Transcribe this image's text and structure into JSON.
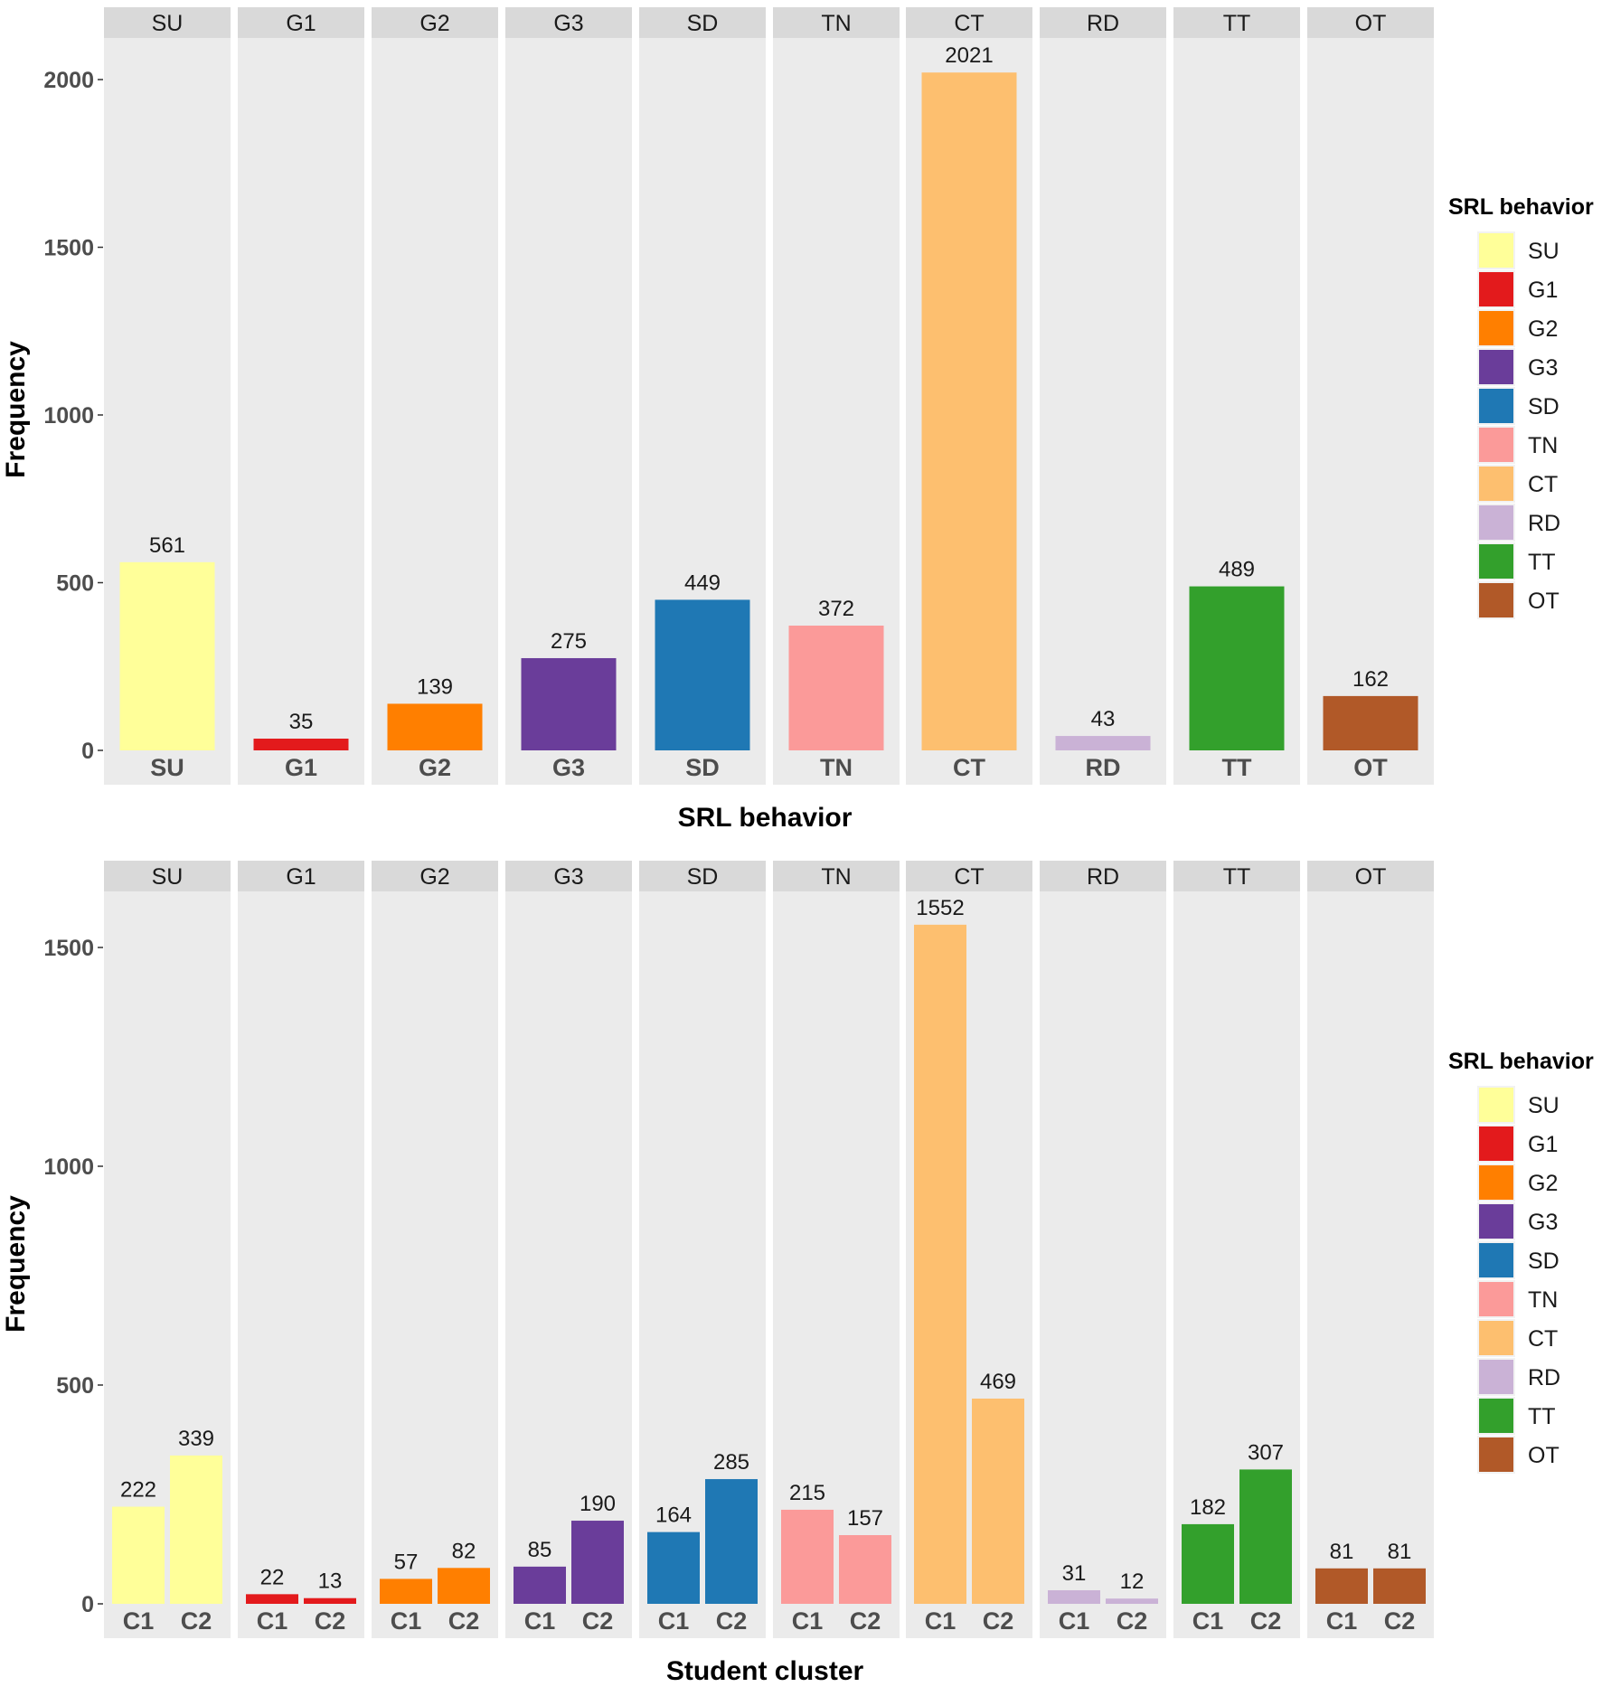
{
  "behaviors": [
    "SU",
    "G1",
    "G2",
    "G3",
    "SD",
    "TN",
    "CT",
    "RD",
    "TT",
    "OT"
  ],
  "colors": {
    "SU": "#FFFF99",
    "G1": "#E31A1C",
    "G2": "#FF7F00",
    "G3": "#6A3D9A",
    "SD": "#1F78B4",
    "TN": "#FB9A99",
    "CT": "#FDBF6F",
    "RD": "#CAB2D6",
    "TT": "#33A02C",
    "OT": "#B15928"
  },
  "chart_data": [
    {
      "type": "bar",
      "facets": [
        "SU",
        "G1",
        "G2",
        "G3",
        "SD",
        "TN",
        "CT",
        "RD",
        "TT",
        "OT"
      ],
      "categories": [
        "SU",
        "G1",
        "G2",
        "G3",
        "SD",
        "TN",
        "CT",
        "RD",
        "TT",
        "OT"
      ],
      "values": [
        561,
        35,
        139,
        275,
        449,
        372,
        2021,
        43,
        489,
        162
      ],
      "xlabel": "SRL behavior",
      "ylabel": "Frequency",
      "ylim": [
        0,
        2021
      ],
      "yticks": [
        0,
        500,
        1000,
        1500,
        2000
      ],
      "legend": {
        "title": "SRL behavior",
        "entries": [
          "SU",
          "G1",
          "G2",
          "G3",
          "SD",
          "TN",
          "CT",
          "RD",
          "TT",
          "OT"
        ]
      }
    },
    {
      "type": "bar",
      "facets": [
        "SU",
        "G1",
        "G2",
        "G3",
        "SD",
        "TN",
        "CT",
        "RD",
        "TT",
        "OT"
      ],
      "categories": [
        "C1",
        "C2"
      ],
      "series": [
        {
          "name": "SU",
          "values": [
            222,
            339
          ]
        },
        {
          "name": "G1",
          "values": [
            22,
            13
          ]
        },
        {
          "name": "G2",
          "values": [
            57,
            82
          ]
        },
        {
          "name": "G3",
          "values": [
            85,
            190
          ]
        },
        {
          "name": "SD",
          "values": [
            164,
            285
          ]
        },
        {
          "name": "TN",
          "values": [
            215,
            157
          ]
        },
        {
          "name": "CT",
          "values": [
            1552,
            469
          ]
        },
        {
          "name": "RD",
          "values": [
            31,
            12
          ]
        },
        {
          "name": "TT",
          "values": [
            182,
            307
          ]
        },
        {
          "name": "OT",
          "values": [
            81,
            81
          ]
        }
      ],
      "xlabel": "Student cluster",
      "ylabel": "Frequency",
      "ylim": [
        0,
        1552
      ],
      "yticks": [
        0,
        500,
        1000,
        1500
      ],
      "legend": {
        "title": "SRL behavior",
        "entries": [
          "SU",
          "G1",
          "G2",
          "G3",
          "SD",
          "TN",
          "CT",
          "RD",
          "TT",
          "OT"
        ]
      }
    }
  ]
}
